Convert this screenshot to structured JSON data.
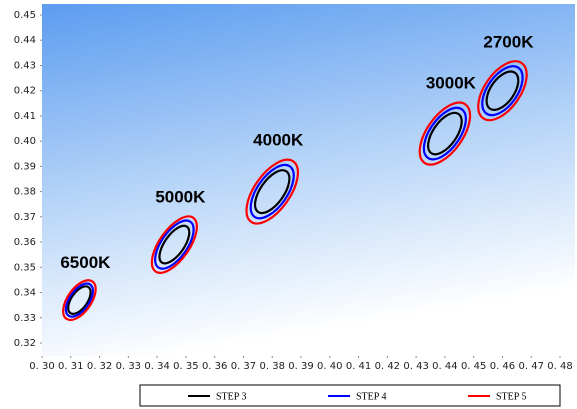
{
  "chart_data": {
    "type": "ellipse",
    "xlim": [
      0.3,
      0.48
    ],
    "xticks": [
      {
        "value": 0.3,
        "label": "0. 30"
      },
      {
        "value": 0.31,
        "label": "0. 31"
      },
      {
        "value": 0.32,
        "label": "0. 32"
      },
      {
        "value": 0.33,
        "label": "0. 33"
      },
      {
        "value": 0.34,
        "label": "0. 34"
      },
      {
        "value": 0.35,
        "label": "0. 35"
      },
      {
        "value": 0.36,
        "label": "0. 36"
      },
      {
        "value": 0.37,
        "label": "0. 37"
      },
      {
        "value": 0.38,
        "label": "0. 38"
      },
      {
        "value": 0.39,
        "label": "0. 39"
      },
      {
        "value": 0.4,
        "label": "0. 40"
      },
      {
        "value": 0.41,
        "label": "0. 41"
      },
      {
        "value": 0.42,
        "label": "0. 42"
      },
      {
        "value": 0.43,
        "label": "0. 43"
      },
      {
        "value": 0.44,
        "label": "0. 44"
      },
      {
        "value": 0.45,
        "label": "0. 45"
      },
      {
        "value": 0.46,
        "label": "0. 46"
      },
      {
        "value": 0.47,
        "label": "0. 47"
      },
      {
        "value": 0.48,
        "label": "0. 48"
      }
    ],
    "ylim": [
      0.32,
      0.45
    ],
    "yticks": [
      0.32,
      0.33,
      0.34,
      0.35,
      0.36,
      0.37,
      0.38,
      0.39,
      {
        "value": 0.4,
        "label": "0.40"
      },
      0.41,
      0.42,
      0.43,
      0.44,
      0.45
    ],
    "angle": -55,
    "centers": [
      {
        "label": "6500K",
        "x": 0.313,
        "y": 0.337
      },
      {
        "label": "5000K",
        "x": 0.346,
        "y": 0.359
      },
      {
        "label": "4000K",
        "x": 0.38,
        "y": 0.38
      },
      {
        "label": "3000K",
        "x": 0.44,
        "y": 0.403
      },
      {
        "label": "2700K",
        "x": 0.46,
        "y": 0.42
      }
    ],
    "series": [
      {
        "name": "STEP 3",
        "color": "#000000",
        "values": [
          {
            "a": 0.0055,
            "b": 0.0028
          },
          {
            "a": 0.0076,
            "b": 0.0034
          },
          {
            "a": 0.0086,
            "b": 0.0041
          },
          {
            "a": 0.0083,
            "b": 0.0041
          },
          {
            "a": 0.0076,
            "b": 0.0041
          }
        ]
      },
      {
        "name": "STEP 4",
        "color": "#0000ff",
        "values": [
          {
            "a": 0.0066,
            "b": 0.0034
          },
          {
            "a": 0.0097,
            "b": 0.0045
          },
          {
            "a": 0.0107,
            "b": 0.0052
          },
          {
            "a": 0.0103,
            "b": 0.0052
          },
          {
            "a": 0.0097,
            "b": 0.0052
          }
        ]
      },
      {
        "name": "STEP 5",
        "color": "#ff0000",
        "values": [
          {
            "a": 0.0079,
            "b": 0.0041
          },
          {
            "a": 0.0114,
            "b": 0.0052
          },
          {
            "a": 0.0128,
            "b": 0.0062
          },
          {
            "a": 0.0124,
            "b": 0.0062
          },
          {
            "a": 0.0117,
            "b": 0.0062
          }
        ]
      }
    ]
  }
}
